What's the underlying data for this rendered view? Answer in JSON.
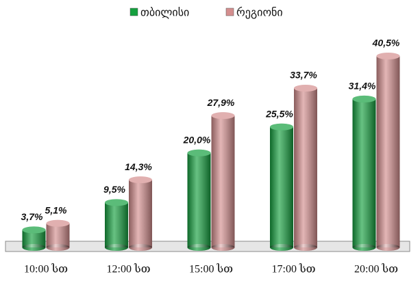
{
  "chart_data": {
    "type": "bar",
    "categories": [
      "10:00 სთ",
      "12:00 სთ",
      "15:00 სთ",
      "17:00 სთ",
      "20:00 სთ"
    ],
    "series": [
      {
        "name": "თბილისი",
        "color": "#15a03f",
        "values": [
          3.7,
          9.5,
          20.0,
          25.5,
          31.4
        ],
        "value_labels": [
          "3,7%",
          "9,5%",
          "20,0%",
          "25,5%",
          "31,4%"
        ]
      },
      {
        "name": "რეგიონი",
        "color": "#d48e8e",
        "values": [
          5.1,
          14.3,
          27.9,
          33.7,
          40.5
        ],
        "value_labels": [
          "5,1%",
          "14,3%",
          "27,9%",
          "33,7%",
          "40,5%"
        ]
      }
    ],
    "legend": "top"
  }
}
